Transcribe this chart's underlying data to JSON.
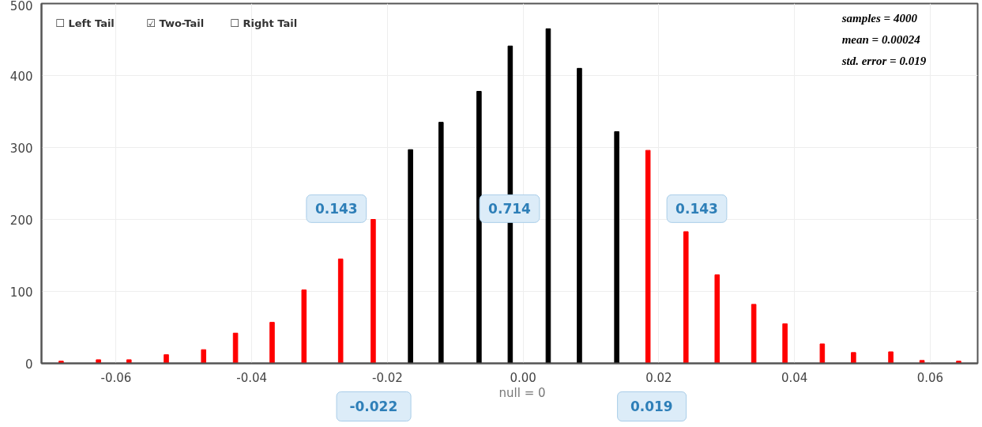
{
  "chart_data": {
    "type": "bar",
    "x": [
      -0.0681,
      -0.0626,
      -0.0581,
      -0.0526,
      -0.0471,
      -0.0424,
      -0.037,
      -0.0323,
      -0.0269,
      -0.0221,
      -0.0166,
      -0.0121,
      -0.0065,
      -0.0019,
      0.0037,
      0.0083,
      0.0138,
      0.0184,
      0.024,
      0.0286,
      0.034,
      0.0386,
      0.0441,
      0.0487,
      0.0542,
      0.0588,
      0.0642
    ],
    "values": [
      3,
      5,
      5,
      12,
      19,
      42,
      57,
      102,
      145,
      200,
      297,
      335,
      378,
      441,
      465,
      410,
      322,
      296,
      183,
      123,
      82,
      55,
      27,
      15,
      16,
      4,
      3
    ],
    "colors": [
      "#ff0000",
      "#ff0000",
      "#ff0000",
      "#ff0000",
      "#ff0000",
      "#ff0000",
      "#ff0000",
      "#ff0000",
      "#ff0000",
      "#ff0000",
      "#000000",
      "#000000",
      "#000000",
      "#000000",
      "#000000",
      "#000000",
      "#000000",
      "#ff0000",
      "#ff0000",
      "#ff0000",
      "#ff0000",
      "#ff0000",
      "#ff0000",
      "#ff0000",
      "#ff0000",
      "#ff0000",
      "#ff0000"
    ],
    "xlim": [
      -0.071,
      0.067
    ],
    "xticks": [
      -0.06,
      -0.04,
      -0.02,
      {
        "value": 0,
        "label": "0.00"
      },
      0.02,
      0.04,
      0.06
    ],
    "ylim": [
      0,
      500
    ],
    "yticks": [
      0,
      100,
      200,
      300,
      400,
      500
    ],
    "grid": true,
    "annotations": [
      "☐ Left Tail",
      "☑ Two-Tail",
      "☐ Right Tail",
      "samples = 4000",
      "mean = 0.00024",
      "std. error = 0.019",
      "0.143",
      "0.714",
      "0.143",
      "null = 0",
      {
        "text": "-0.022",
        "x": -0.022,
        "y": 0
      },
      {
        "text": "0.019",
        "x": 0.019,
        "y": 0
      }
    ]
  }
}
